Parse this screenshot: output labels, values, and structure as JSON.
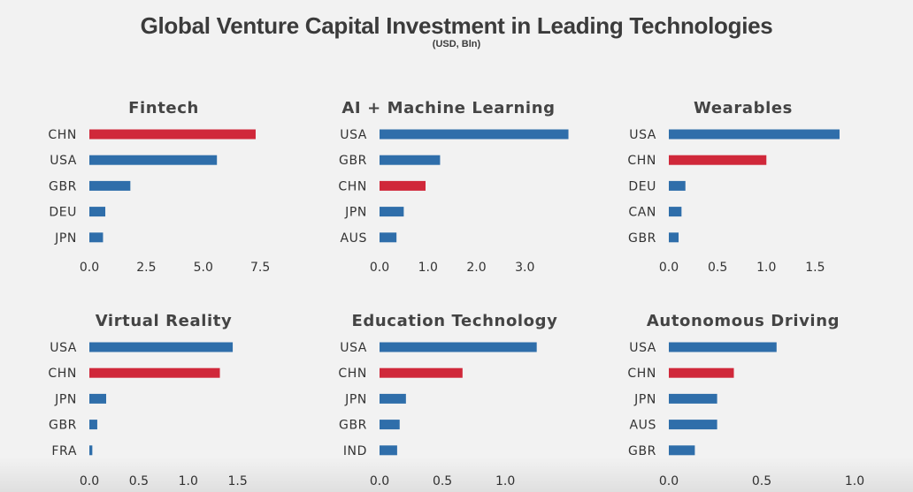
{
  "title": "Global Venture Capital Investment in Leading Technologies",
  "subtitle": "(USD, Bln)",
  "colors": {
    "usa_china_highlight": "#d0283a",
    "other": "#2f6eaa"
  },
  "chart_data": [
    {
      "type": "bar",
      "orientation": "horizontal",
      "title": "Fintech",
      "categories": [
        "CHN",
        "USA",
        "GBR",
        "DEU",
        "JPN"
      ],
      "values": [
        7.3,
        5.6,
        1.8,
        0.7,
        0.6
      ],
      "highlight": [
        "CHN"
      ],
      "xticks": [
        "0.0",
        "2.5",
        "5.0",
        "7.5"
      ],
      "xlim": [
        0,
        8
      ]
    },
    {
      "type": "bar",
      "orientation": "horizontal",
      "title": "AI + Machine Learning",
      "categories": [
        "USA",
        "GBR",
        "CHN",
        "JPN",
        "AUS"
      ],
      "values": [
        3.9,
        1.25,
        0.95,
        0.5,
        0.35
      ],
      "highlight": [
        "CHN"
      ],
      "xticks": [
        "0.0",
        "1.0",
        "2.0",
        "3.0"
      ],
      "xlim": [
        0,
        4
      ]
    },
    {
      "type": "bar",
      "orientation": "horizontal",
      "title": "Wearables",
      "categories": [
        "USA",
        "CHN",
        "DEU",
        "CAN",
        "GBR"
      ],
      "values": [
        1.75,
        1.0,
        0.17,
        0.13,
        0.1
      ],
      "highlight": [
        "CHN"
      ],
      "xticks": [
        "0.0",
        "0.5",
        "1.0",
        "1.5"
      ],
      "xlim": [
        0,
        1.85
      ]
    },
    {
      "type": "bar",
      "orientation": "horizontal",
      "title": "Virtual Reality",
      "categories": [
        "USA",
        "CHN",
        "JPN",
        "GBR",
        "FRA"
      ],
      "values": [
        1.45,
        1.32,
        0.17,
        0.08,
        0.03
      ],
      "highlight": [
        "CHN"
      ],
      "xticks": [
        "0.0",
        "0.5",
        "1.0",
        "1.5"
      ],
      "xlim": [
        0,
        1.7
      ]
    },
    {
      "type": "bar",
      "orientation": "horizontal",
      "title": "Education Technology",
      "categories": [
        "USA",
        "CHN",
        "JPN",
        "GBR",
        "IND"
      ],
      "values": [
        1.25,
        0.66,
        0.21,
        0.16,
        0.14
      ],
      "highlight": [
        "CHN"
      ],
      "xticks": [
        "0.0",
        "0.5",
        "1.0"
      ],
      "xlim": [
        0,
        1.4
      ]
    },
    {
      "type": "bar",
      "orientation": "horizontal",
      "title": "Autonomous Driving",
      "categories": [
        "USA",
        "CHN",
        "JPN",
        "AUS",
        "GBR"
      ],
      "values": [
        0.58,
        0.35,
        0.26,
        0.26,
        0.14
      ],
      "highlight": [
        "CHN"
      ],
      "xticks": [
        "0.0",
        "0.5",
        "1.0"
      ],
      "xlim": [
        0,
        1.0
      ]
    }
  ]
}
